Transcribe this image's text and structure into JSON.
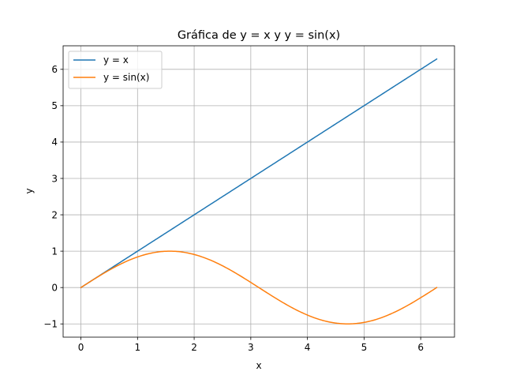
{
  "chart_data": {
    "type": "line",
    "title": "Gráfica de y = x y y = sin(x)",
    "xlabel": "x",
    "ylabel": "y",
    "xlim": [
      -0.314,
      6.597
    ],
    "ylim": [
      -1.364,
      6.647
    ],
    "x_ticks": [
      0,
      1,
      2,
      3,
      4,
      5,
      6
    ],
    "y_ticks": [
      -1,
      0,
      1,
      2,
      3,
      4,
      5,
      6
    ],
    "x_tick_labels": [
      "0",
      "1",
      "2",
      "3",
      "4",
      "5",
      "6"
    ],
    "y_tick_labels": [
      "−1",
      "0",
      "1",
      "2",
      "3",
      "4",
      "5",
      "6"
    ],
    "grid": true,
    "legend_position": "upper-left",
    "x_range": [
      0,
      6.283
    ],
    "series": [
      {
        "name": "y = x",
        "function": "x",
        "color": "#1f77b4"
      },
      {
        "name": "y = sin(x)",
        "function": "sin(x)",
        "color": "#ff7f0e"
      }
    ]
  }
}
